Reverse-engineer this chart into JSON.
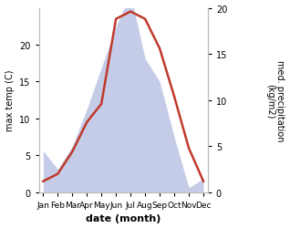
{
  "months": [
    "Jan",
    "Feb",
    "Mar",
    "Apr",
    "May",
    "Jun",
    "Jul",
    "Aug",
    "Sep",
    "Oct",
    "Nov",
    "Dec"
  ],
  "max_temp": [
    1.5,
    2.5,
    5.5,
    9.5,
    12.0,
    23.5,
    24.5,
    23.5,
    19.5,
    13.0,
    6.0,
    1.5
  ],
  "precipitation": [
    4.5,
    2.5,
    5.0,
    9.0,
    13.5,
    18.0,
    21.5,
    14.5,
    12.0,
    6.0,
    0.5,
    1.5
  ],
  "temp_color": "#c0392b",
  "precip_fill_color": "#c5cce8",
  "ylabel_left": "max temp (C)",
  "ylabel_right": "med. precipitation\n(kg/m2)",
  "xlabel": "date (month)",
  "ylim_left": [
    0,
    25
  ],
  "ylim_right": [
    0,
    20
  ],
  "left_yticks": [
    0,
    5,
    10,
    15,
    20
  ],
  "right_yticks": [
    0,
    5,
    10,
    15,
    20
  ],
  "bg_color": "#ffffff"
}
